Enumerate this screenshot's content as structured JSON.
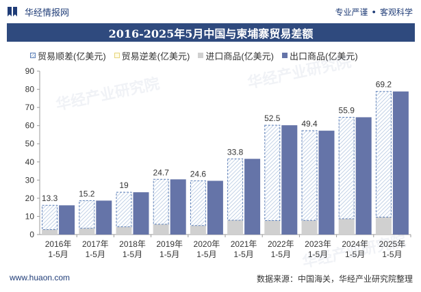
{
  "header": {
    "brand": "华经情报网",
    "slogan_left": "专业严谨",
    "slogan_right": "客观科学",
    "logo_icon": "bookmark-logo-icon"
  },
  "footer": {
    "website": "www.huaon.com",
    "source": "数据来源：中国海关，华经产业研究院整理"
  },
  "watermark": "华经产业研究院",
  "colors": {
    "title_bg": "#2f4a7e",
    "export": "#6574a8",
    "import": "#d0d0d0",
    "surplus_stroke": "#5b7eb7",
    "deficit_stroke": "#e6d47a"
  },
  "chart_data": {
    "type": "bar",
    "title": "2016-2025年5月中国与柬埔寨贸易差额",
    "categories": [
      [
        "2016年",
        "1-5月"
      ],
      [
        "2017年",
        "1-5月"
      ],
      [
        "2018年",
        "1-5月"
      ],
      [
        "2019年",
        "1-5月"
      ],
      [
        "2020年",
        "1-5月"
      ],
      [
        "2021年",
        "1-5月"
      ],
      [
        "2022年",
        "1-5月"
      ],
      [
        "2023年",
        "1-5月"
      ],
      [
        "2024年",
        "1-5月"
      ],
      [
        "2025年",
        "1-5月"
      ]
    ],
    "series": [
      {
        "name": "贸易顺差(亿美元)",
        "values": [
          13.3,
          15.2,
          19,
          24.7,
          24.6,
          33.8,
          52.5,
          49.4,
          55.9,
          69.2
        ]
      },
      {
        "name": "贸易逆差(亿美元)",
        "values": [
          0,
          0,
          0,
          0,
          0,
          0,
          0,
          0,
          0,
          0
        ]
      },
      {
        "name": "进口商品(亿美元)",
        "values": [
          2.8,
          3.5,
          4.3,
          5.7,
          5.0,
          7.9,
          7.7,
          7.8,
          8.7,
          9.6
        ]
      },
      {
        "name": "出口商品(亿美元)",
        "values": [
          16.1,
          18.7,
          23.3,
          30.4,
          29.6,
          41.7,
          60.2,
          57.2,
          64.6,
          78.8
        ]
      }
    ],
    "ylim": [
      0,
      90
    ],
    "yticks": [
      0,
      10,
      20,
      30,
      40,
      50,
      60,
      70,
      80,
      90
    ],
    "grid": false,
    "legend_position": "top-left",
    "data_labels_series": "贸易顺差(亿美元)"
  }
}
